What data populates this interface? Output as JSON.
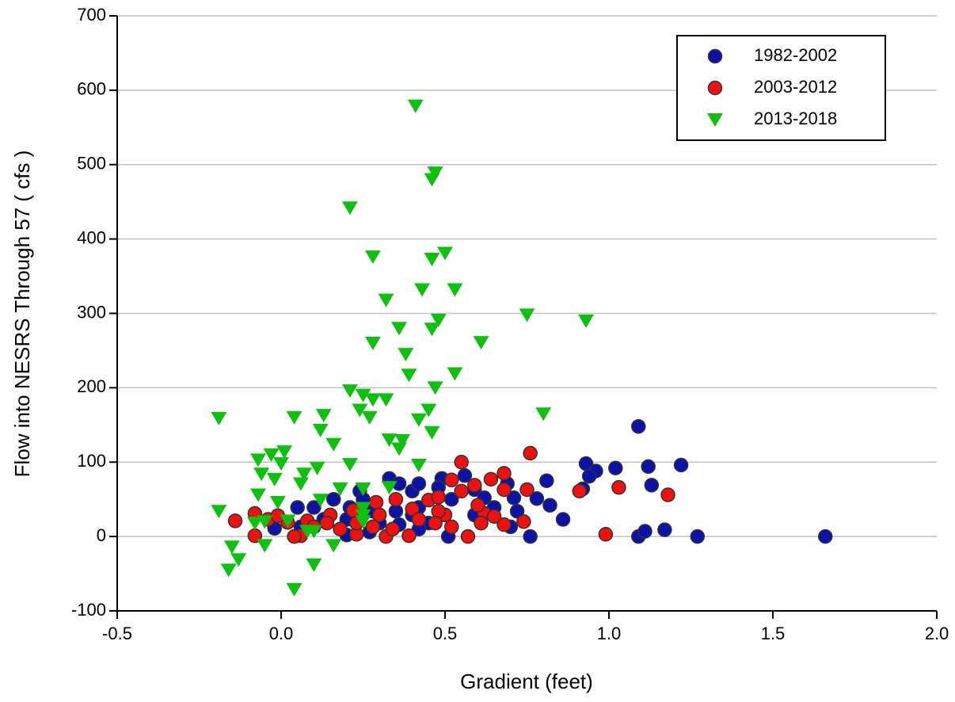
{
  "chart_data": {
    "type": "scatter",
    "x_label": "Gradient (feet)",
    "y_label": "Flow into NESRS Through 57 ( cfs )",
    "xlim": [
      -0.5,
      2.0
    ],
    "xticks": [
      -0.5,
      {
        "value": 0,
        "label": "0.0"
      },
      0.5,
      {
        "value": 1,
        "label": "1.0"
      },
      1.5,
      {
        "value": 2,
        "label": "2.0"
      }
    ],
    "ylim": [
      -100,
      700
    ],
    "yticks": [
      -100,
      0,
      100,
      200,
      300,
      400,
      500,
      600,
      700
    ],
    "grid": true,
    "legend_position": "upper right",
    "series": [
      {
        "name": "1982-2002",
        "color": "#0c12a8",
        "marker": "circle",
        "x": [
          1.66,
          1.27,
          1.09,
          1.17,
          1.11,
          1.09,
          1.22,
          1.12,
          1.13,
          1.02,
          0.93,
          0.96,
          0.94,
          0.92,
          0.81,
          0.82,
          0.86,
          0.78,
          0.76,
          0.7,
          0.4,
          0.33,
          0.49,
          0.59,
          0.71,
          0.65,
          0.24,
          0.16,
          0.1,
          0.05,
          -0.02,
          0.06,
          0.2,
          0.27,
          0.36,
          0.45,
          0.51,
          0.42,
          0.3,
          0.2,
          0.35,
          0.42,
          0.52,
          0.62,
          0.69,
          0.56,
          0.42,
          0.25,
          0.13,
          0.28,
          0.48,
          0.36,
          0.59,
          0.72,
          0.4,
          0.21
        ],
        "values": [
          0,
          0,
          0,
          9,
          7,
          148,
          96,
          94,
          69,
          92,
          98,
          88,
          81,
          64,
          75,
          42,
          23,
          51,
          0,
          13,
          61,
          78,
          78,
          63,
          52,
          39,
          61,
          50,
          39,
          39,
          11,
          13,
          2,
          6,
          16,
          18,
          0,
          10,
          18,
          23,
          34,
          39,
          50,
          52,
          71,
          82,
          71,
          50,
          23,
          34,
          66,
          71,
          29,
          34,
          29,
          39
        ]
      },
      {
        "name": "2003-2012",
        "color": "#f01010",
        "marker": "circle",
        "x": [
          -0.14,
          -0.08,
          -0.08,
          0.55,
          0.76,
          1.03,
          1.18,
          0.99,
          0.91,
          0.68,
          0.64,
          0.59,
          0.52,
          0.75,
          0.68,
          0.5,
          0.48,
          0.62,
          0.61,
          0.52,
          0.57,
          0.68,
          0.74,
          0.35,
          0.29,
          0.45,
          0.4,
          0.3,
          0.22,
          0.15,
          0.08,
          0.06,
          0.04,
          0.18,
          0.23,
          0.32,
          0.34,
          0.39,
          0.42,
          0.23,
          0.1,
          0.02,
          -0.04,
          -0.01,
          0.55,
          0.6,
          0.47,
          0.28,
          0.14,
          0.65,
          0.48
        ],
        "values": [
          21,
          1,
          31,
          100,
          112,
          66,
          56,
          3,
          61,
          85,
          77,
          69,
          76,
          63,
          63,
          29,
          34,
          31,
          18,
          13,
          0,
          16,
          20,
          50,
          46,
          49,
          37,
          29,
          35,
          29,
          21,
          1,
          0,
          10,
          3,
          0,
          10,
          1,
          23,
          18,
          13,
          19,
          23,
          28,
          61,
          42,
          18,
          13,
          18,
          27,
          53
        ]
      },
      {
        "name": "2013-2018",
        "color": "#10c010",
        "marker": "triangle-down",
        "x": [
          0.41,
          0.47,
          0.46,
          0.21,
          0.5,
          0.46,
          0.28,
          0.43,
          0.53,
          0.32,
          0.75,
          0.93,
          0.48,
          0.46,
          0.36,
          0.28,
          0.61,
          0.38,
          0.39,
          0.53,
          0.47,
          0.21,
          0.8,
          -0.19,
          0.25,
          0.28,
          0.32,
          0.45,
          0.24,
          0.42,
          0.27,
          0.04,
          0.13,
          0.46,
          0.12,
          0.33,
          0.37,
          0.16,
          0.36,
          0.01,
          -0.07,
          -0.03,
          0.0,
          0.21,
          0.42,
          0.07,
          -0.06,
          -0.02,
          0.11,
          0.06,
          0.18,
          -0.07,
          0.25,
          0.33,
          0.12,
          -0.01,
          -0.19,
          0.25,
          0.25,
          0.25,
          0.02,
          -0.08,
          -0.05,
          0.08,
          0.1,
          -0.05,
          -0.15,
          0.16,
          -0.13,
          -0.16,
          0.1,
          0.04
        ],
        "values": [
          579,
          489,
          480,
          442,
          381,
          373,
          376,
          332,
          332,
          318,
          298,
          290,
          291,
          279,
          280,
          260,
          261,
          245,
          217,
          219,
          200,
          196,
          165,
          159,
          190,
          184,
          184,
          170,
          170,
          157,
          160,
          160,
          163,
          140,
          143,
          130,
          129,
          124,
          118,
          114,
          103,
          110,
          98,
          97,
          96,
          84,
          84,
          77,
          92,
          71,
          64,
          56,
          64,
          66,
          49,
          46,
          34,
          38,
          28,
          20,
          21,
          18,
          20,
          7,
          7,
          -12,
          -14,
          -12,
          -31,
          -45,
          -38,
          -71
        ]
      }
    ]
  }
}
